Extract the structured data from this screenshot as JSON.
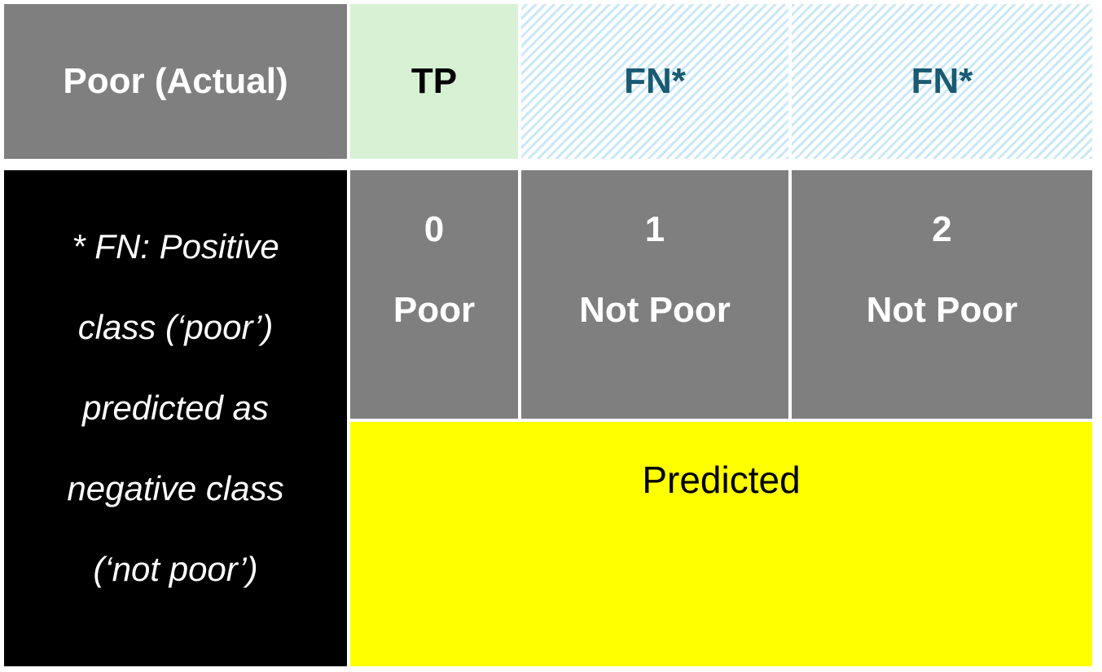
{
  "header_row": {
    "actual_label": "Poor (Actual)",
    "tp_label": "TP",
    "fn_labels": [
      "FN*",
      "FN*"
    ]
  },
  "note": {
    "lines": [
      "* FN: Positive",
      "class (‘poor’)",
      "predicted as",
      "negative class",
      "(‘not poor’)"
    ]
  },
  "classes": [
    {
      "number": "0",
      "label": "Poor"
    },
    {
      "number": "1",
      "label": "Not Poor"
    },
    {
      "number": "2",
      "label": "Not Poor"
    }
  ],
  "predicted_label": "Predicted",
  "colors": {
    "header_gray": "#7f7f7f",
    "tp_green": "#d8f1d5",
    "fn_stripe_blue": "#c9e8f6",
    "fn_text": "#1a5a73",
    "note_black": "#000000",
    "predicted_yellow": "#ffff00"
  }
}
